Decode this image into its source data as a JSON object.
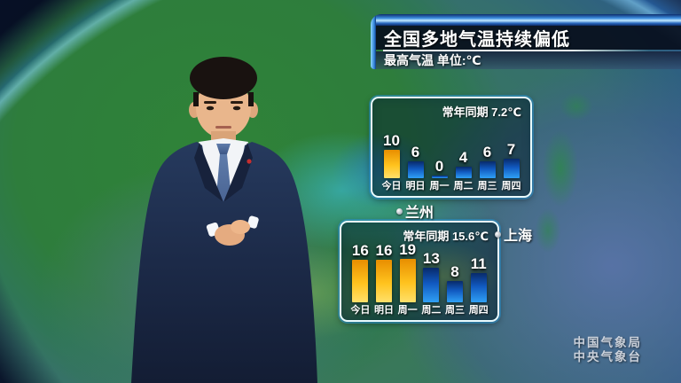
{
  "banner": {
    "title": "全国多地气温持续偏低",
    "subtitle": "最高气温 单位:℃"
  },
  "chart_data": [
    {
      "type": "bar",
      "city": "兰州",
      "title": "",
      "annotation": "常年同期 7.2℃",
      "categories": [
        "今日",
        "明日",
        "周一",
        "周二",
        "周三",
        "周四"
      ],
      "values": [
        10,
        6,
        0,
        4,
        6,
        7
      ],
      "unit": "℃",
      "bar_colors": [
        "orange",
        "blue",
        "blue",
        "blue",
        "blue",
        "blue"
      ],
      "value_labels": true,
      "ylim": [
        0,
        12
      ],
      "grid": false,
      "legend": "none"
    },
    {
      "type": "bar",
      "city": "上海",
      "title": "",
      "annotation": "常年同期 15.6℃",
      "categories": [
        "今日",
        "明日",
        "周一",
        "周二",
        "周三",
        "周四"
      ],
      "values": [
        16,
        16,
        19,
        13,
        8,
        11
      ],
      "unit": "℃",
      "bar_colors": [
        "orange",
        "orange",
        "orange",
        "blue",
        "blue",
        "blue"
      ],
      "value_labels": true,
      "ylim": [
        0,
        20
      ],
      "grid": false,
      "legend": "none"
    }
  ],
  "map_labels": [
    {
      "city": "兰州"
    },
    {
      "city": "上海"
    }
  ],
  "watermark": {
    "line1": "中国气象局",
    "line2": "中央气象台"
  },
  "colors": {
    "bar_above_normal": "#ffc31e",
    "bar_below_normal": "#2fa0f5",
    "panel_border": "#e9fbff",
    "banner_gloss_blue": "#3d8fe0",
    "text": "#ffffff"
  }
}
